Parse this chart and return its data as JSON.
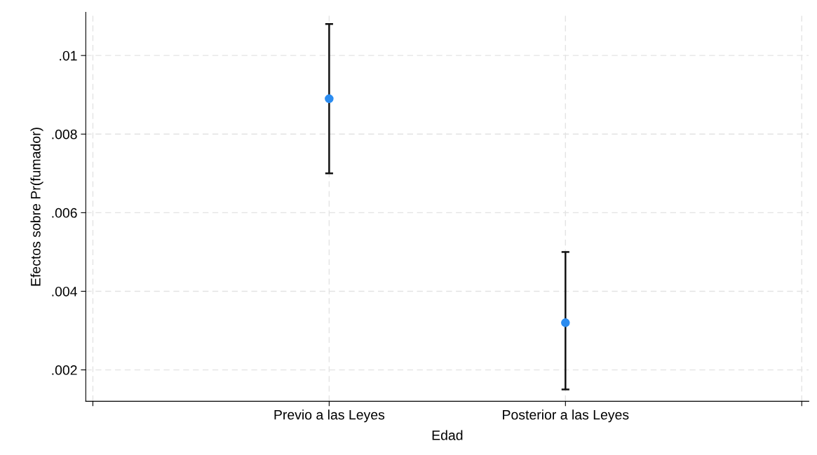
{
  "chart_data": {
    "type": "scatter",
    "xlabel": "Edad",
    "ylabel": "Efectos sobre Pr(fumador)",
    "categories": [
      null,
      "Previo a las Leyes",
      "Posterior a las Leyes",
      null
    ],
    "values": [
      null,
      0.0089,
      0.0032,
      null
    ],
    "errors": [
      null,
      [
        0.007,
        0.0108
      ],
      [
        0.0015,
        0.005
      ],
      null
    ],
    "color": "#2b8cf0",
    "marker": "circle",
    "ylim": [
      0.0012,
      0.0111
    ],
    "yticks": [
      {
        "value": 0.002,
        "label": ".002"
      },
      {
        "value": 0.004,
        "label": ".004"
      },
      {
        "value": 0.006,
        "label": ".006"
      },
      {
        "value": 0.008,
        "label": ".008"
      },
      {
        "value": 0.01,
        "label": ".01"
      }
    ],
    "grid": true
  }
}
